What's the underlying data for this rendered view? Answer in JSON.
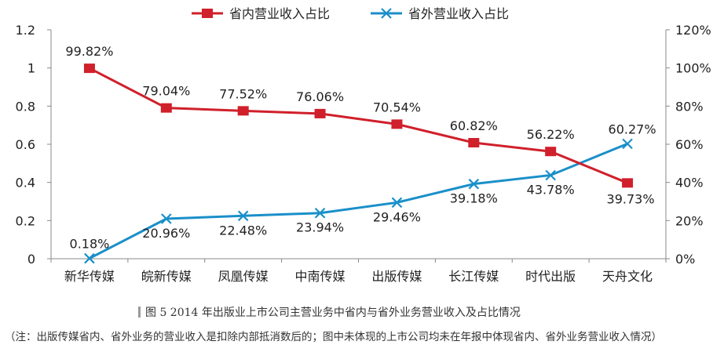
{
  "chart_data": {
    "type": "line",
    "categories": [
      "新华传媒",
      "皖新传媒",
      "凤凰传媒",
      "中南传媒",
      "出版传媒",
      "长江传媒",
      "时代出版",
      "天舟文化"
    ],
    "series": [
      {
        "name": "省内营业收入占比",
        "axis": "left",
        "color": "#d0202b",
        "marker": "square",
        "values": [
          0.9982,
          0.7904,
          0.7752,
          0.7606,
          0.7054,
          0.6082,
          0.5622,
          0.3973
        ],
        "labels": [
          "99.82%",
          "79.04%",
          "77.52%",
          "76.06%",
          "70.54%",
          "60.82%",
          "56.22%",
          "39.73%"
        ]
      },
      {
        "name": "省外营业收入占比",
        "axis": "right",
        "color": "#1a8fc9",
        "marker": "x",
        "values": [
          0.18,
          20.96,
          22.48,
          23.94,
          29.46,
          39.18,
          43.78,
          60.27
        ],
        "labels": [
          "0.18%",
          "20.96%",
          "22.48%",
          "23.94%",
          "29.46%",
          "39.18%",
          "43.78%",
          "60.27%"
        ]
      }
    ],
    "left_axis": {
      "ylim": [
        0,
        1.2
      ],
      "ticks": [
        "0",
        "0.2",
        "0.4",
        "0.6",
        "0.8",
        "1",
        "1.2"
      ]
    },
    "right_axis": {
      "ylim": [
        0,
        120
      ],
      "ticks": [
        "0%",
        "20%",
        "40%",
        "60%",
        "80%",
        "100%",
        "120%"
      ]
    },
    "legend_position": "top-center",
    "grid": false
  },
  "caption": "图 5 2014 年出版业上市公司主营业务中省内与省外业务营业收入及占比情况",
  "note": "（注：出版传媒省内、省外业务的营业收入是扣除内部抵消数后的；图中未体现的上市公司均未在年报中体现省内、省外业务营业收入情况）"
}
